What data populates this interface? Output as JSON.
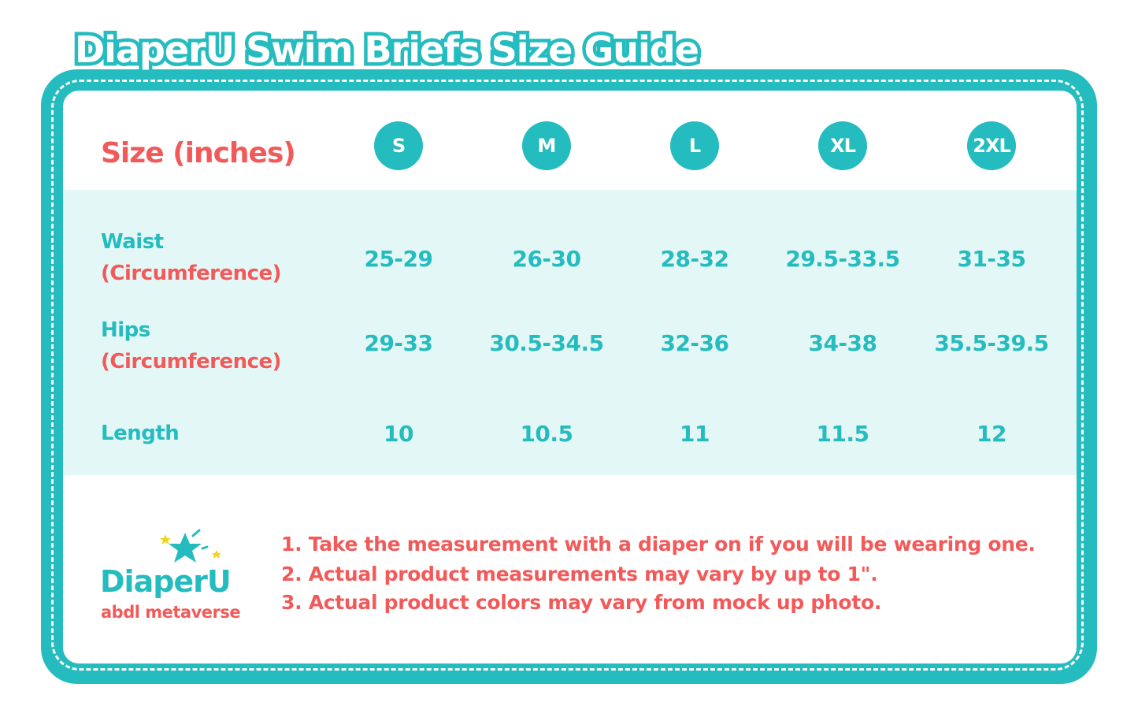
{
  "title": "DiaperU Swim Briefs Size Guide",
  "header_label": "Size (inches)",
  "sizes": [
    "S",
    "M",
    "L",
    "XL",
    "2XL"
  ],
  "rows": [
    {
      "label": "Waist",
      "sublabel": "(Circumference)",
      "values": [
        "25-29",
        "26-30",
        "28-32",
        "29.5-33.5",
        "31-35"
      ]
    },
    {
      "label": "Hips",
      "sublabel": "(Circumference)",
      "values": [
        "29-33",
        "30.5-34.5",
        "32-36",
        "34-38",
        "35.5-39.5"
      ]
    },
    {
      "label": "Length",
      "sublabel": "",
      "values": [
        "10",
        "10.5",
        "11",
        "11.5",
        "12"
      ]
    }
  ],
  "notes": [
    "1. Take the measurement with a diaper on if you will be wearing one.",
    "2. Actual product measurements may vary by up to 1\".",
    "3. Actual product colors may vary from mock up photo."
  ],
  "logo": {
    "name": "DiaperU",
    "tagline": "abdl metaverse"
  },
  "colors": {
    "teal": "#25bcbf",
    "coral": "#f25a5a",
    "band": "#e3f7f6",
    "star": "#f7d21c"
  }
}
